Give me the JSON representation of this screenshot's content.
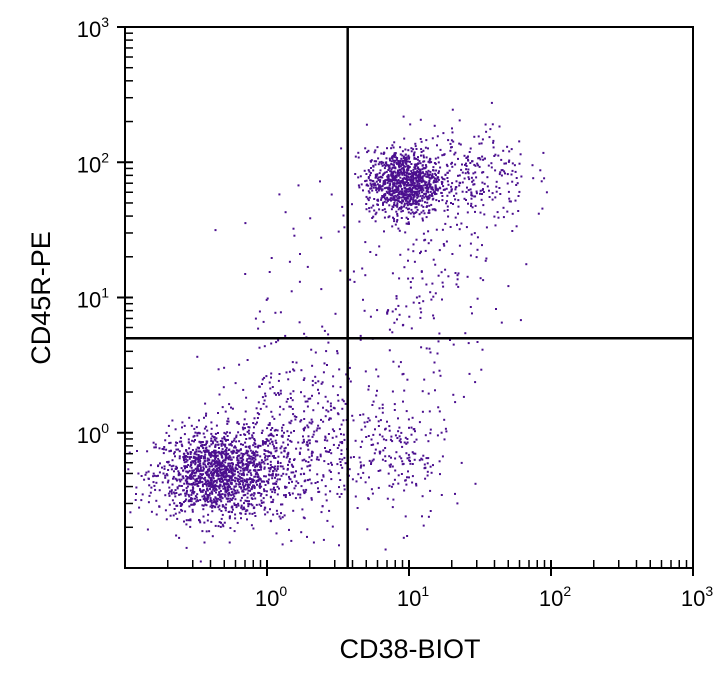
{
  "chart_data": {
    "type": "scatter",
    "title": "",
    "xlabel": "CD38-BIOT",
    "ylabel": "CD45R-PE",
    "x_scale": "log",
    "y_scale": "log",
    "xlim": [
      0.1,
      1000
    ],
    "ylim": [
      0.1,
      1000
    ],
    "grid": false,
    "legend": "none",
    "point_color": "#4b0f8f",
    "x_ticks": [
      {
        "value": 1,
        "base": "10",
        "exp": "0"
      },
      {
        "value": 10,
        "base": "10",
        "exp": "1"
      },
      {
        "value": 100,
        "base": "10",
        "exp": "2"
      },
      {
        "value": 1000,
        "base": "10",
        "exp": "3"
      }
    ],
    "y_ticks": [
      {
        "value": 1,
        "base": "10",
        "exp": "0"
      },
      {
        "value": 10,
        "base": "10",
        "exp": "1"
      },
      {
        "value": 100,
        "base": "10",
        "exp": "2"
      },
      {
        "value": 1000,
        "base": "10",
        "exp": "3"
      }
    ],
    "quadrant_gates": {
      "x": 3.7,
      "y": 5.0
    },
    "populations": [
      {
        "center": [
          0.45,
          0.5
        ],
        "log_spread": [
          0.22,
          0.16
        ],
        "count": 1500
      },
      {
        "center": [
          9,
          72
        ],
        "log_spread": [
          0.13,
          0.12
        ],
        "count": 1000
      },
      {
        "center": [
          25,
          80
        ],
        "log_spread": [
          0.22,
          0.2
        ],
        "count": 300
      },
      {
        "center": [
          1.5,
          0.8
        ],
        "log_spread": [
          0.3,
          0.3
        ],
        "count": 500
      },
      {
        "center": [
          8,
          0.7
        ],
        "log_spread": [
          0.18,
          0.25
        ],
        "count": 200
      },
      {
        "center": [
          15,
          12
        ],
        "log_spread": [
          0.25,
          0.35
        ],
        "count": 150
      },
      {
        "center": [
          2.5,
          8
        ],
        "log_spread": [
          0.35,
          0.5
        ],
        "count": 80
      }
    ]
  }
}
